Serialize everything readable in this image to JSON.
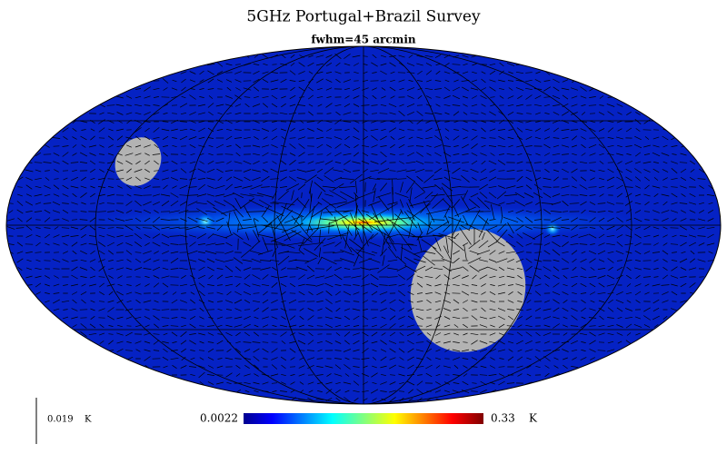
{
  "title": "5GHz Portugal+Brazil Survey",
  "subtitle": "fwhm=45 arcmin",
  "polarization_scale": {
    "label": "0.019",
    "unit": "K"
  },
  "colorbar": {
    "min_label": "0.0022",
    "max_label": "0.33",
    "unit": "K"
  }
}
